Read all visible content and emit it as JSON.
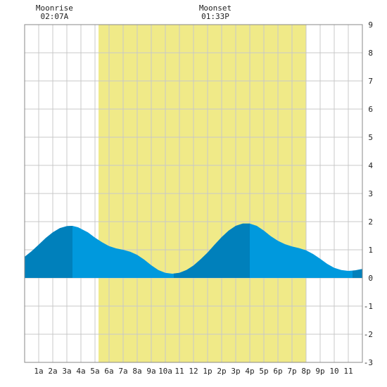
{
  "chart_data": {
    "type": "area",
    "title": "",
    "xlabel": "",
    "ylabel": "",
    "xlim": [
      0,
      24
    ],
    "ylim": [
      -3,
      9
    ],
    "grid": true,
    "x_ticks": [
      {
        "x": 1,
        "label": "1a"
      },
      {
        "x": 2,
        "label": "2a"
      },
      {
        "x": 3,
        "label": "3a"
      },
      {
        "x": 4,
        "label": "4a"
      },
      {
        "x": 5,
        "label": "5a"
      },
      {
        "x": 6,
        "label": "6a"
      },
      {
        "x": 7,
        "label": "7a"
      },
      {
        "x": 8,
        "label": "8a"
      },
      {
        "x": 9,
        "label": "9a"
      },
      {
        "x": 10,
        "label": "10a"
      },
      {
        "x": 11,
        "label": "11"
      },
      {
        "x": 12,
        "label": "12"
      },
      {
        "x": 13,
        "label": "1p"
      },
      {
        "x": 14,
        "label": "2p"
      },
      {
        "x": 15,
        "label": "3p"
      },
      {
        "x": 16,
        "label": "4p"
      },
      {
        "x": 17,
        "label": "5p"
      },
      {
        "x": 18,
        "label": "6p"
      },
      {
        "x": 19,
        "label": "7p"
      },
      {
        "x": 20,
        "label": "8p"
      },
      {
        "x": 21,
        "label": "9p"
      },
      {
        "x": 22,
        "label": "10"
      },
      {
        "x": 23,
        "label": "11"
      }
    ],
    "y_ticks": [
      -3,
      -2,
      -1,
      0,
      1,
      2,
      3,
      4,
      5,
      6,
      7,
      8,
      9
    ],
    "daylight": {
      "start": 5.25,
      "end": 20.0
    },
    "moon_events": [
      {
        "label": "Moonrise",
        "time": "02:07A",
        "x": 2.117
      },
      {
        "label": "Moonset",
        "time": "01:33P",
        "x": 13.55
      }
    ],
    "tide": {
      "x": [
        0,
        0.5,
        1,
        1.5,
        2,
        2.5,
        3,
        3.4,
        3.8,
        4.5,
        5,
        5.5,
        6,
        6.5,
        7,
        7.5,
        8,
        8.5,
        9,
        9.5,
        10,
        10.5,
        11,
        11.5,
        12,
        12.5,
        13,
        13.5,
        14,
        14.5,
        15,
        15.5,
        16,
        16.5,
        17,
        17.5,
        18,
        18.5,
        19,
        19.5,
        20,
        20.5,
        21,
        21.5,
        22,
        22.5,
        23,
        23.5,
        24
      ],
      "y": [
        0.75,
        0.95,
        1.18,
        1.42,
        1.62,
        1.77,
        1.84,
        1.85,
        1.8,
        1.62,
        1.43,
        1.27,
        1.13,
        1.05,
        1.0,
        0.93,
        0.82,
        0.65,
        0.45,
        0.28,
        0.18,
        0.15,
        0.18,
        0.28,
        0.44,
        0.66,
        0.9,
        1.18,
        1.45,
        1.68,
        1.85,
        1.93,
        1.93,
        1.85,
        1.68,
        1.48,
        1.32,
        1.2,
        1.12,
        1.06,
        0.98,
        0.85,
        0.68,
        0.5,
        0.36,
        0.28,
        0.25,
        0.27,
        0.32
      ]
    },
    "tide_dark_bands": [
      {
        "start": 0,
        "end": 3.4
      },
      {
        "start": 10.6,
        "end": 16.0
      },
      {
        "start": 23.3,
        "end": 24
      }
    ],
    "colors": {
      "daylight": "#f0ea88",
      "tide": "#0099dd",
      "tide_dark": "#0080bb",
      "grid": "#c8c8c8",
      "text": "#222222"
    }
  }
}
